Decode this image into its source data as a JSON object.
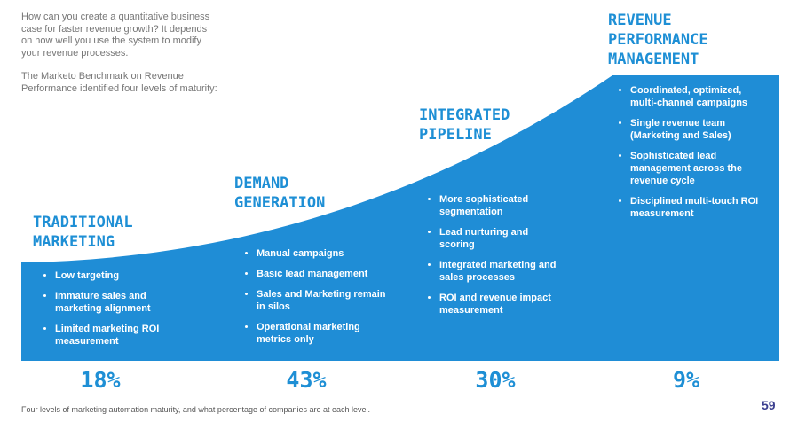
{
  "intro": [
    "How can you create a quantitative business case for faster revenue growth? It depends on how well you use the system to modify your revenue processes.",
    "The Marketo Benchmark on Revenue Performance identified four levels of maturity:"
  ],
  "levels": [
    {
      "title": [
        "TRADITIONAL",
        "MARKETING"
      ],
      "bullets": [
        "Low targeting",
        "Immature sales and marketing alignment",
        "Limited marketing ROI measurement"
      ],
      "percent": "18%"
    },
    {
      "title": [
        "DEMAND",
        "GENERATION"
      ],
      "bullets": [
        "Manual campaigns",
        "Basic lead management",
        "Sales and Marketing remain in silos",
        "Operational marketing metrics only"
      ],
      "percent": "43%"
    },
    {
      "title": [
        "INTEGRATED",
        "PIPELINE"
      ],
      "bullets": [
        "More sophisticated segmentation",
        "Lead nurturing and scoring",
        "Integrated marketing and sales processes",
        "ROI and revenue impact measurement"
      ],
      "percent": "30%"
    },
    {
      "title": [
        "REVENUE",
        "PERFORMANCE",
        "MANAGEMENT"
      ],
      "bullets": [
        "Coordinated, optimized, multi-channel campaigns",
        "Single revenue team (Marketing and Sales)",
        "Sophisticated lead management across the revenue cycle",
        "Disciplined multi-touch ROI measurement"
      ],
      "percent": "9%"
    }
  ],
  "caption": "Four levels of marketing automation maturity, and what percentage of companies are at each level.",
  "page_number": "59"
}
